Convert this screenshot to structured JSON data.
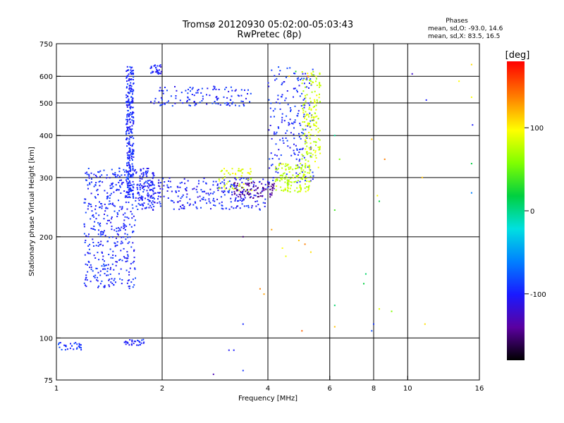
{
  "chart_data": {
    "type": "scatter",
    "title": "Tromsø 20120930 05:02:00-05:03:43",
    "subtitle": "RwPretec (8p)",
    "xlabel": "Frequency [MHz]",
    "ylabel": "Stationary phase Virtual Height [km]",
    "x_scale": "log",
    "y_scale": "log",
    "xlim": [
      1,
      16
    ],
    "ylim": [
      75,
      750
    ],
    "x_ticks": [
      1,
      2,
      4,
      6,
      8,
      10,
      16
    ],
    "y_ticks": [
      75,
      100,
      200,
      300,
      400,
      500,
      600,
      750
    ],
    "x_gridlines": [
      2,
      4,
      6,
      8,
      10
    ],
    "y_gridlines": [
      100,
      200,
      300,
      400,
      500,
      600
    ],
    "phase_stats": {
      "heading": "Phases",
      "line_o": "mean, sd,O: -93.0, 14.6",
      "line_x": "mean, sd,X:  83.5, 16.5"
    },
    "colorbar": {
      "label": "[deg]",
      "range": [
        -180,
        180
      ],
      "ticks": [
        -100,
        0,
        100
      ]
    },
    "series": [
      {
        "ray": "O",
        "phase_mean": -93,
        "segments": [
          {
            "kind": "F-region band",
            "x": [
              1.58,
              1.66
            ],
            "y": [
              260,
              650
            ],
            "n": 300,
            "phase": -95
          },
          {
            "kind": "lower column",
            "x": [
              1.2,
              1.68
            ],
            "y": [
              140,
              320
            ],
            "n": 420,
            "phase": -95
          },
          {
            "kind": "hook",
            "x": [
              1.68,
              1.9
            ],
            "y": [
              240,
              320
            ],
            "n": 120,
            "phase": -98
          },
          {
            "kind": "trace",
            "x": [
              1.8,
              4.0
            ],
            "y": [
              240,
              300
            ],
            "n": 260,
            "phase": -100
          },
          {
            "kind": "cusp rise",
            "x": [
              4.0,
              5.4
            ],
            "y": [
              290,
              640
            ],
            "n": 200,
            "phase": -95
          },
          {
            "kind": "upper trace",
            "x": [
              1.85,
              3.6
            ],
            "y": [
              490,
              560
            ],
            "n": 120,
            "phase": -95
          },
          {
            "kind": "echo patch",
            "x": [
              1.85,
              2.0
            ],
            "y": [
              610,
              650
            ],
            "n": 30,
            "phase": -100
          },
          {
            "kind": "E-region low",
            "x": [
              1.0,
              1.18
            ],
            "y": [
              92,
              97
            ],
            "n": 30,
            "phase": -90
          },
          {
            "kind": "E-region low",
            "x": [
              1.56,
              1.78
            ],
            "y": [
              95,
              99
            ],
            "n": 30,
            "phase": -95
          }
        ]
      },
      {
        "ray": "X",
        "phase_mean": 83.5,
        "segments": [
          {
            "kind": "X trace",
            "x": [
              4.2,
              5.3
            ],
            "y": [
              270,
              330
            ],
            "n": 140,
            "phase": 80
          },
          {
            "kind": "X rise",
            "x": [
              5.0,
              5.65
            ],
            "y": [
              320,
              620
            ],
            "n": 160,
            "phase": 85
          },
          {
            "kind": "X near critical",
            "x": [
              2.9,
              3.6
            ],
            "y": [
              270,
              320
            ],
            "n": 60,
            "phase": 90
          }
        ]
      },
      {
        "ray": "O",
        "kind": "transition near cusp",
        "x": [
          3.2,
          4.2
        ],
        "y": [
          260,
          290
        ],
        "n": 80,
        "phase": -140
      },
      {
        "ray": "scatter",
        "kind": "isolated points",
        "points": [
          [
            6.2,
            400,
            0
          ],
          [
            6.4,
            340,
            60
          ],
          [
            6.2,
            240,
            40
          ],
          [
            5.3,
            180,
            110
          ],
          [
            4.9,
            195,
            120
          ],
          [
            4.1,
            210,
            130
          ],
          [
            3.4,
            200,
            -150
          ],
          [
            4.4,
            185,
            100
          ],
          [
            4.5,
            175,
            95
          ],
          [
            5.1,
            190,
            140
          ],
          [
            3.9,
            135,
            130
          ],
          [
            3.8,
            140,
            140
          ],
          [
            7.5,
            145,
            20
          ],
          [
            7.6,
            155,
            10
          ],
          [
            8.2,
            265,
            100
          ],
          [
            8.3,
            255,
            20
          ],
          [
            8.6,
            340,
            140
          ],
          [
            7.9,
            390,
            120
          ],
          [
            8.0,
            110,
            -90
          ],
          [
            7.9,
            105,
            -80
          ],
          [
            5.0,
            105,
            150
          ],
          [
            6.2,
            108,
            120
          ],
          [
            6.2,
            125,
            10
          ],
          [
            3.4,
            110,
            -95
          ],
          [
            3.4,
            80,
            -90
          ],
          [
            2.8,
            78,
            -130
          ],
          [
            3.9,
            75,
            -120
          ],
          [
            3.2,
            92,
            -100
          ],
          [
            3.1,
            92,
            -105
          ],
          [
            9.0,
            120,
            60
          ],
          [
            8.3,
            122,
            90
          ],
          [
            11.2,
            110,
            110
          ],
          [
            11.0,
            300,
            120
          ],
          [
            11.3,
            510,
            -100
          ],
          [
            10.3,
            610,
            -120
          ],
          [
            14.0,
            580,
            100
          ],
          [
            15.2,
            650,
            110
          ],
          [
            15.2,
            520,
            100
          ],
          [
            15.3,
            430,
            -100
          ],
          [
            15.2,
            330,
            20
          ],
          [
            15.2,
            270,
            -60
          ],
          [
            5.5,
            590,
            60
          ],
          [
            4.8,
            620,
            30
          ],
          [
            5.2,
            600,
            160
          ],
          [
            4.6,
            600,
            120
          ],
          [
            1.6,
            175,
            -90
          ],
          [
            1.62,
            640,
            -70
          ]
        ]
      }
    ]
  }
}
